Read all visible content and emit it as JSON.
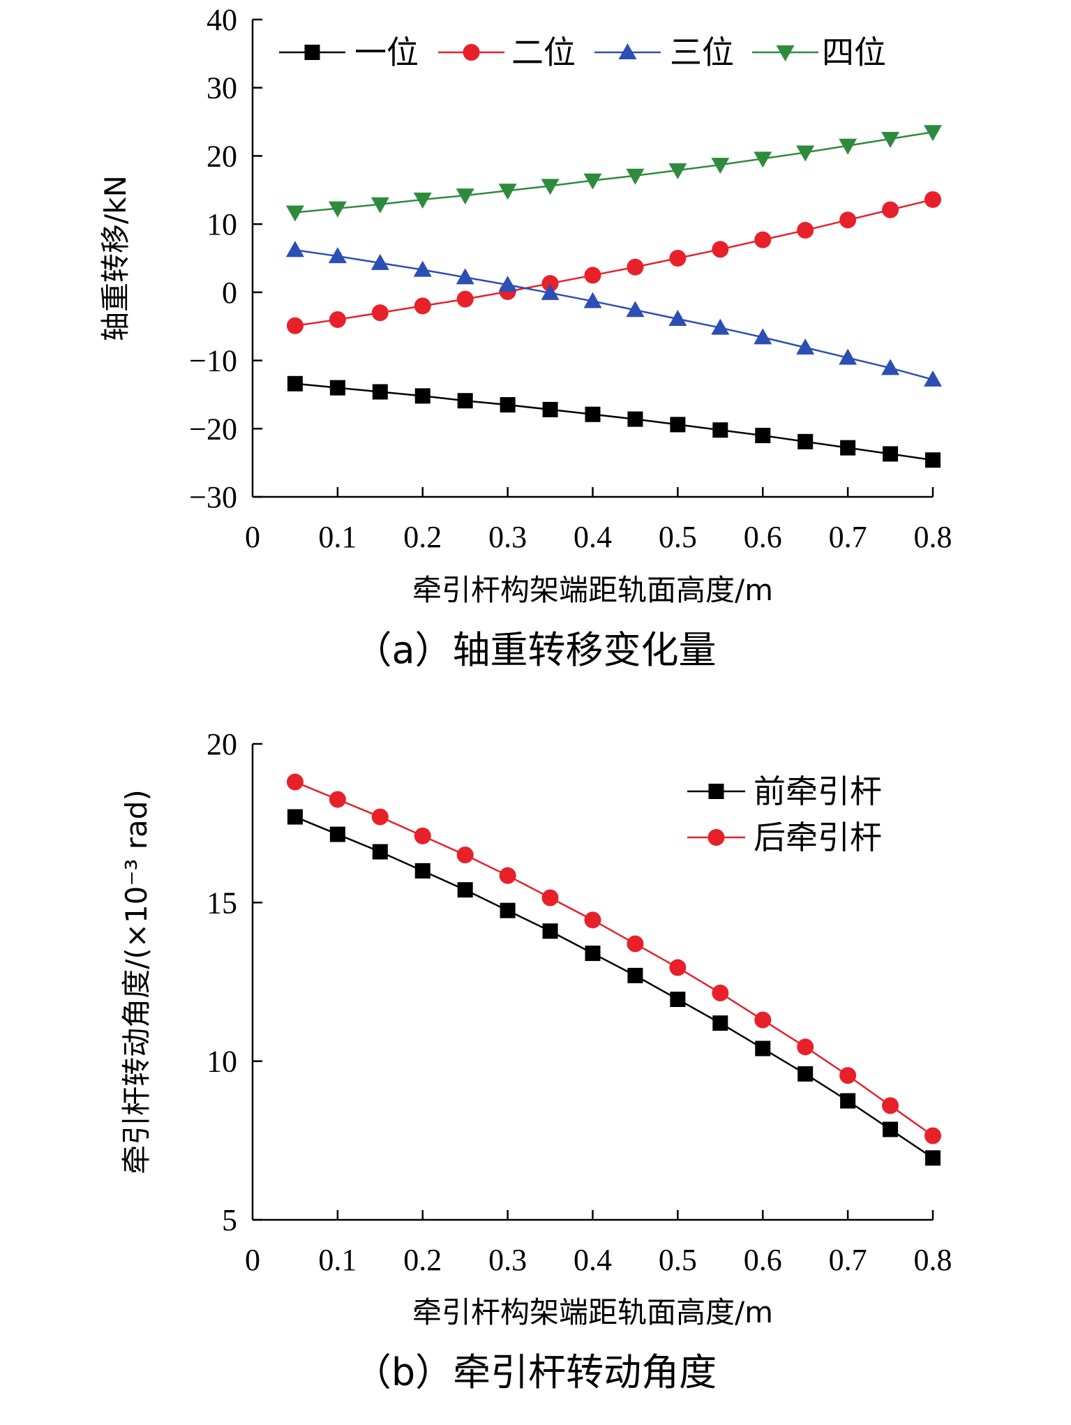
{
  "chart_data": [
    {
      "type": "line",
      "caption": "（a）轴重转移变化量",
      "xlabel": "牵引杆构架端距轨面高度/m",
      "ylabel": "轴重转移/kN",
      "xlim": [
        0,
        0.8
      ],
      "ylim": [
        -30,
        40
      ],
      "xticks": [
        "0",
        "0.1",
        "0.2",
        "0.3",
        "0.4",
        "0.5",
        "0.6",
        "0.7",
        "0.8"
      ],
      "yticks": [
        "−30",
        "−20",
        "−10",
        "0",
        "10",
        "20",
        "30",
        "40"
      ],
      "x": [
        0.05,
        0.1,
        0.15,
        0.2,
        0.25,
        0.3,
        0.35,
        0.4,
        0.45,
        0.5,
        0.55,
        0.6,
        0.65,
        0.7,
        0.75,
        0.8
      ],
      "legend_position": "top",
      "series": [
        {
          "name": "一位",
          "color": "#000000",
          "marker": "square",
          "values": [
            -13.4,
            -14.0,
            -14.6,
            -15.2,
            -15.9,
            -16.5,
            -17.2,
            -17.9,
            -18.6,
            -19.4,
            -20.2,
            -21.0,
            -21.9,
            -22.8,
            -23.7,
            -24.6
          ]
        },
        {
          "name": "二位",
          "color": "#e8202a",
          "marker": "circle",
          "values": [
            -4.9,
            -4.0,
            -3.0,
            -2.0,
            -1.0,
            0.1,
            1.3,
            2.5,
            3.7,
            5.0,
            6.3,
            7.7,
            9.1,
            10.6,
            12.1,
            13.6
          ]
        },
        {
          "name": "三位",
          "color": "#2b4fb4",
          "marker": "triangle-up",
          "values": [
            6.2,
            5.3,
            4.3,
            3.3,
            2.2,
            1.1,
            -0.1,
            -1.3,
            -2.6,
            -3.9,
            -5.2,
            -6.6,
            -8.1,
            -9.6,
            -11.1,
            -12.8
          ]
        },
        {
          "name": "四位",
          "color": "#2e8b3e",
          "marker": "triangle-down",
          "values": [
            11.7,
            12.3,
            12.9,
            13.6,
            14.2,
            14.9,
            15.6,
            16.4,
            17.1,
            17.9,
            18.7,
            19.6,
            20.5,
            21.5,
            22.5,
            23.5
          ]
        }
      ]
    },
    {
      "type": "line",
      "caption": "（b）牵引杆转动角度",
      "xlabel": "牵引杆构架端距轨面高度/m",
      "ylabel": "牵引杆转动角度/(×10⁻³ rad)",
      "xlim": [
        0,
        0.8
      ],
      "ylim": [
        5,
        20
      ],
      "xticks": [
        "0",
        "0.1",
        "0.2",
        "0.3",
        "0.4",
        "0.5",
        "0.6",
        "0.7",
        "0.8"
      ],
      "yticks": [
        "5",
        "10",
        "15",
        "20"
      ],
      "x": [
        0.05,
        0.1,
        0.15,
        0.2,
        0.25,
        0.3,
        0.35,
        0.4,
        0.45,
        0.5,
        0.55,
        0.6,
        0.65,
        0.7,
        0.75,
        0.8
      ],
      "legend_position": "top-right",
      "series": [
        {
          "name": "前牵引杆",
          "color": "#000000",
          "marker": "square",
          "values": [
            17.7,
            17.15,
            16.6,
            16.0,
            15.4,
            14.75,
            14.1,
            13.4,
            12.7,
            11.95,
            11.2,
            10.4,
            9.6,
            8.75,
            7.85,
            6.95
          ]
        },
        {
          "name": "后牵引杆",
          "color": "#e8202a",
          "marker": "circle",
          "values": [
            18.8,
            18.25,
            17.7,
            17.1,
            16.5,
            15.85,
            15.15,
            14.45,
            13.7,
            12.95,
            12.15,
            11.3,
            10.45,
            9.55,
            8.6,
            7.65
          ]
        }
      ]
    }
  ]
}
